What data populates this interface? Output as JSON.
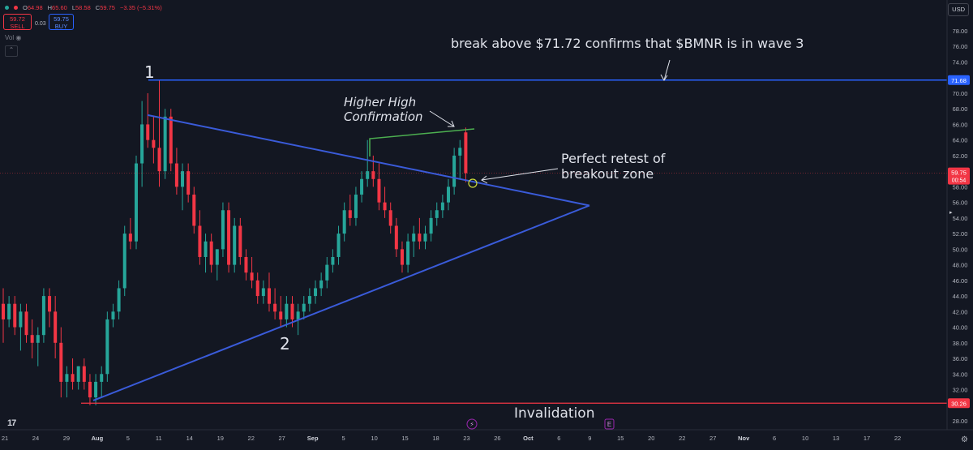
{
  "header": {
    "ohlc": {
      "open_label": "O",
      "open": "64.98",
      "high_label": "H",
      "high": "65.60",
      "low_label": "L",
      "low": "58.58",
      "close_label": "C",
      "close": "59.75",
      "change": "−3.35 (−5.31%)"
    },
    "sell_price": "59.72",
    "sell_label": "SELL",
    "spread": "0.03",
    "buy_price": "59.75",
    "buy_label": "BUY",
    "vol_label": "Vol",
    "currency": "USD"
  },
  "colors": {
    "background": "#131722",
    "up": "#26a69a",
    "down": "#f23645",
    "trendline": "#3a5bd9",
    "level_blue": "#2962ff",
    "level_red": "#f23645",
    "higher_high_line": "#4caf50",
    "annotation_text": "#e0e3eb"
  },
  "annotations": {
    "wave1": "1",
    "wave2": "2",
    "break_text": "break above $71.72 confirms that $BMNR is in wave 3",
    "higher_high_line1": "Higher High",
    "higher_high_line2": "Confirmation",
    "retest_line1": "Perfect retest of",
    "retest_line2": "breakout zone",
    "invalidation": "Invalidation"
  },
  "events": {
    "dividends_icon": "lightning-icon",
    "earnings_icon": "E"
  },
  "chart_data": {
    "type": "candlestick",
    "y_ticks": [
      "78.00",
      "76.00",
      "74.00",
      "72.00",
      "70.00",
      "68.00",
      "66.00",
      "64.00",
      "62.00",
      "60.00",
      "58.00",
      "56.00",
      "54.00",
      "52.00",
      "50.00",
      "48.00",
      "46.00",
      "44.00",
      "42.00",
      "40.00",
      "38.00",
      "36.00",
      "34.00",
      "32.00",
      "30.00",
      "28.00"
    ],
    "ylim": [
      27,
      80
    ],
    "x_ticks": [
      "21",
      "24",
      "29",
      "Aug",
      "5",
      "11",
      "14",
      "19",
      "22",
      "27",
      "Sep",
      "5",
      "10",
      "15",
      "18",
      "23",
      "26",
      "Oct",
      "6",
      "9",
      "15",
      "20",
      "22",
      "27",
      "Nov",
      "6",
      "10",
      "13",
      "17",
      "22"
    ],
    "price_labels": {
      "resistance": "71.68",
      "last_price": "59.75",
      "countdown": "00:54",
      "support": "30.26"
    },
    "levels": {
      "resistance": 71.68,
      "support": 30.26,
      "last_price": 59.75
    },
    "candles": [
      [
        43,
        45,
        38,
        41
      ],
      [
        41,
        44,
        40,
        43
      ],
      [
        43,
        44,
        39,
        40
      ],
      [
        40,
        43,
        37,
        42
      ],
      [
        42,
        43,
        38,
        39
      ],
      [
        39,
        41,
        36,
        38
      ],
      [
        38,
        40,
        35,
        39
      ],
      [
        39,
        45,
        38,
        44
      ],
      [
        44,
        45,
        40,
        42
      ],
      [
        42,
        44,
        36,
        38
      ],
      [
        38,
        40,
        31,
        33
      ],
      [
        33,
        35,
        31,
        34
      ],
      [
        34,
        36,
        32,
        33
      ],
      [
        33,
        35,
        32,
        35
      ],
      [
        35,
        36,
        32,
        33
      ],
      [
        33,
        34,
        30,
        31
      ],
      [
        31,
        34,
        30,
        33
      ],
      [
        33,
        35,
        31,
        34
      ],
      [
        34,
        42,
        33,
        41
      ],
      [
        41,
        43,
        40,
        42
      ],
      [
        42,
        46,
        41,
        45
      ],
      [
        45,
        53,
        44,
        52
      ],
      [
        52,
        54,
        50,
        51
      ],
      [
        51,
        62,
        50,
        61
      ],
      [
        61,
        69,
        58,
        66
      ],
      [
        66,
        70,
        63,
        64
      ],
      [
        64,
        67,
        61,
        63
      ],
      [
        63,
        71.7,
        58,
        60
      ],
      [
        60,
        68,
        59,
        67
      ],
      [
        67,
        68,
        60,
        61
      ],
      [
        61,
        63,
        57,
        58
      ],
      [
        58,
        61,
        55,
        60
      ],
      [
        60,
        61,
        56,
        57
      ],
      [
        57,
        58,
        52,
        53
      ],
      [
        53,
        55,
        48,
        49
      ],
      [
        49,
        52,
        47,
        51
      ],
      [
        51,
        52,
        47,
        48
      ],
      [
        48,
        50,
        46,
        50
      ],
      [
        50,
        56,
        49,
        55
      ],
      [
        55,
        56,
        47,
        48
      ],
      [
        48,
        54,
        47,
        53
      ],
      [
        53,
        54,
        48,
        49
      ],
      [
        49,
        50,
        46,
        47
      ],
      [
        47,
        49,
        45,
        46
      ],
      [
        46,
        47,
        43,
        44
      ],
      [
        44,
        46,
        43,
        45
      ],
      [
        45,
        47,
        42,
        43
      ],
      [
        43,
        45,
        41,
        42
      ],
      [
        42,
        44,
        40,
        41
      ],
      [
        41,
        44,
        40,
        43
      ],
      [
        43,
        44,
        40,
        41
      ],
      [
        41,
        43,
        39,
        42
      ],
      [
        42,
        44,
        41,
        43
      ],
      [
        43,
        45,
        42,
        44
      ],
      [
        44,
        46,
        43,
        45
      ],
      [
        45,
        47,
        44,
        46
      ],
      [
        46,
        49,
        45,
        48
      ],
      [
        48,
        50,
        47,
        49
      ],
      [
        49,
        53,
        48,
        52
      ],
      [
        52,
        56,
        51,
        55
      ],
      [
        55,
        57,
        53,
        54
      ],
      [
        54,
        58,
        53,
        57
      ],
      [
        57,
        60,
        56,
        59
      ],
      [
        59,
        64,
        58,
        60
      ],
      [
        60,
        62,
        58,
        59
      ],
      [
        59,
        61,
        55,
        56
      ],
      [
        56,
        58,
        54,
        55
      ],
      [
        55,
        56,
        52,
        53
      ],
      [
        53,
        54,
        49,
        50
      ],
      [
        50,
        51,
        47,
        48
      ],
      [
        48,
        52,
        47,
        51
      ],
      [
        51,
        53,
        49,
        52
      ],
      [
        52,
        54,
        50,
        51
      ],
      [
        51,
        53,
        50,
        52
      ],
      [
        52,
        55,
        51,
        54
      ],
      [
        54,
        56,
        53,
        55
      ],
      [
        55,
        57,
        54,
        56
      ],
      [
        56,
        59,
        55,
        58
      ],
      [
        58,
        63,
        57,
        62
      ],
      [
        62,
        64,
        59,
        63
      ],
      [
        64.98,
        65.6,
        58.58,
        59.75
      ]
    ]
  }
}
